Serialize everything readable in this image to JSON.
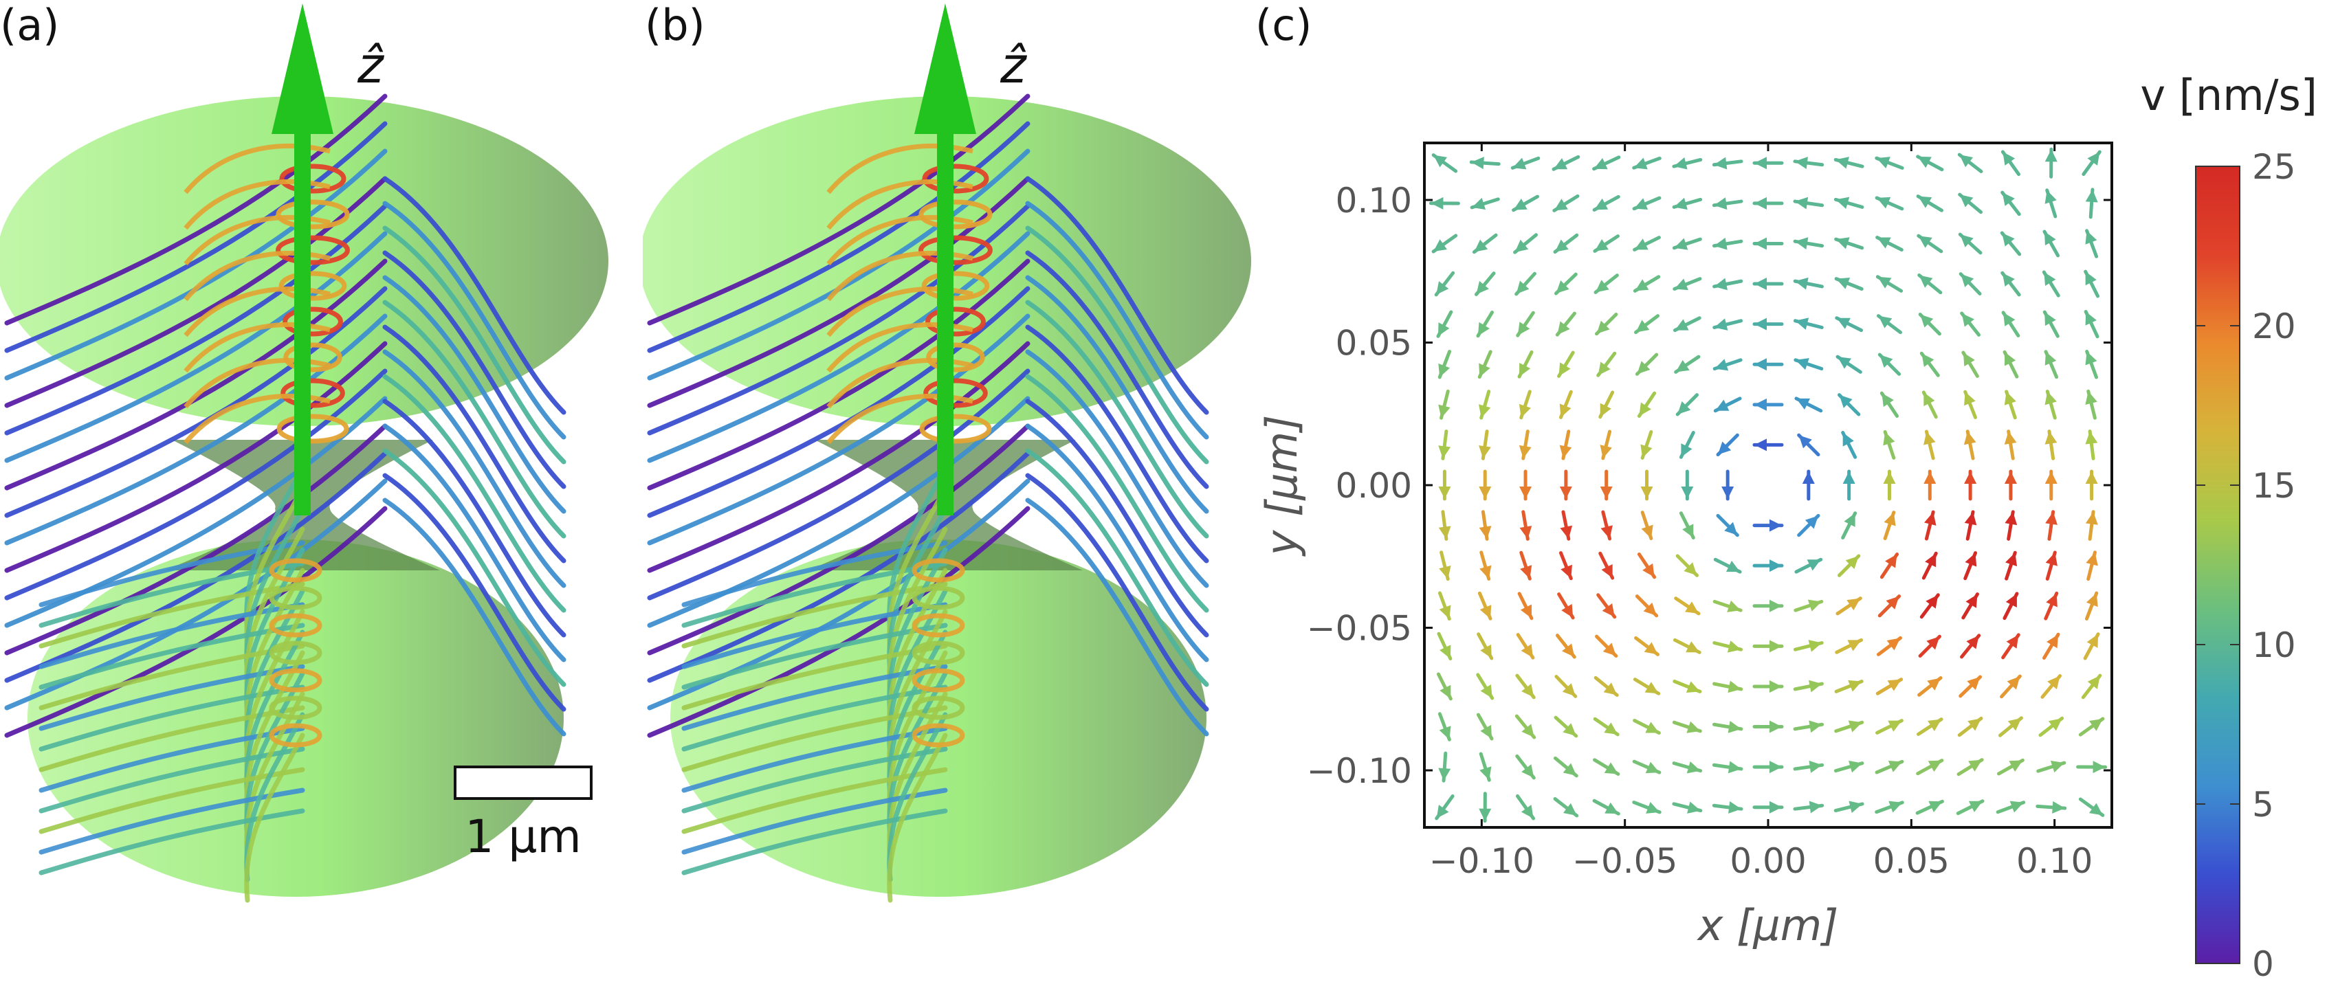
{
  "figure": {
    "panel_labels": [
      "(a)",
      "(b)",
      "(c)"
    ],
    "axis_arrow_label": "ẑ",
    "scale_bar_label": "1 μm",
    "streamline_colors": [
      "#5b1fa6",
      "#3a4fd0",
      "#3e8fd0",
      "#4fb59c",
      "#9fc94a",
      "#e3a332",
      "#e0432a"
    ],
    "surface_color": "#8ee86a",
    "arrow_color": "#22c21f"
  },
  "chart_data": [
    {
      "type": "vector-field",
      "panel": "(c)",
      "xlabel": "x [μm]",
      "ylabel": "y [μm]",
      "xlim": [
        -0.12,
        0.12
      ],
      "ylim": [
        -0.12,
        0.12
      ],
      "xticks": [
        "−0.10",
        "−0.05",
        "0.00",
        "0.05",
        "0.10"
      ],
      "xtick_values": [
        -0.1,
        -0.05,
        0.0,
        0.05,
        0.1
      ],
      "yticks": [
        "0.10",
        "0.05",
        "0.00",
        "−0.05",
        "−0.10"
      ],
      "ytick_values": [
        0.1,
        0.05,
        0.0,
        -0.05,
        -0.1
      ],
      "flow": "counter-clockwise vortex",
      "vortex_center": [
        0.0,
        0.0
      ],
      "max_speed_location": [
        0.07,
        -0.03
      ],
      "colorbar": {
        "label": "v [nm/s]",
        "range": [
          0,
          25
        ],
        "ticks": [
          "25",
          "20",
          "15",
          "10",
          "5",
          "0"
        ],
        "tick_values": [
          25,
          20,
          15,
          10,
          5,
          0
        ],
        "colors": [
          "#5b1fa6",
          "#3a4fd0",
          "#3e8fd0",
          "#43a9b0",
          "#6bbf7e",
          "#a8c94a",
          "#d6b43a",
          "#ea8a2e",
          "#e0432a",
          "#d42a25"
        ]
      }
    }
  ]
}
